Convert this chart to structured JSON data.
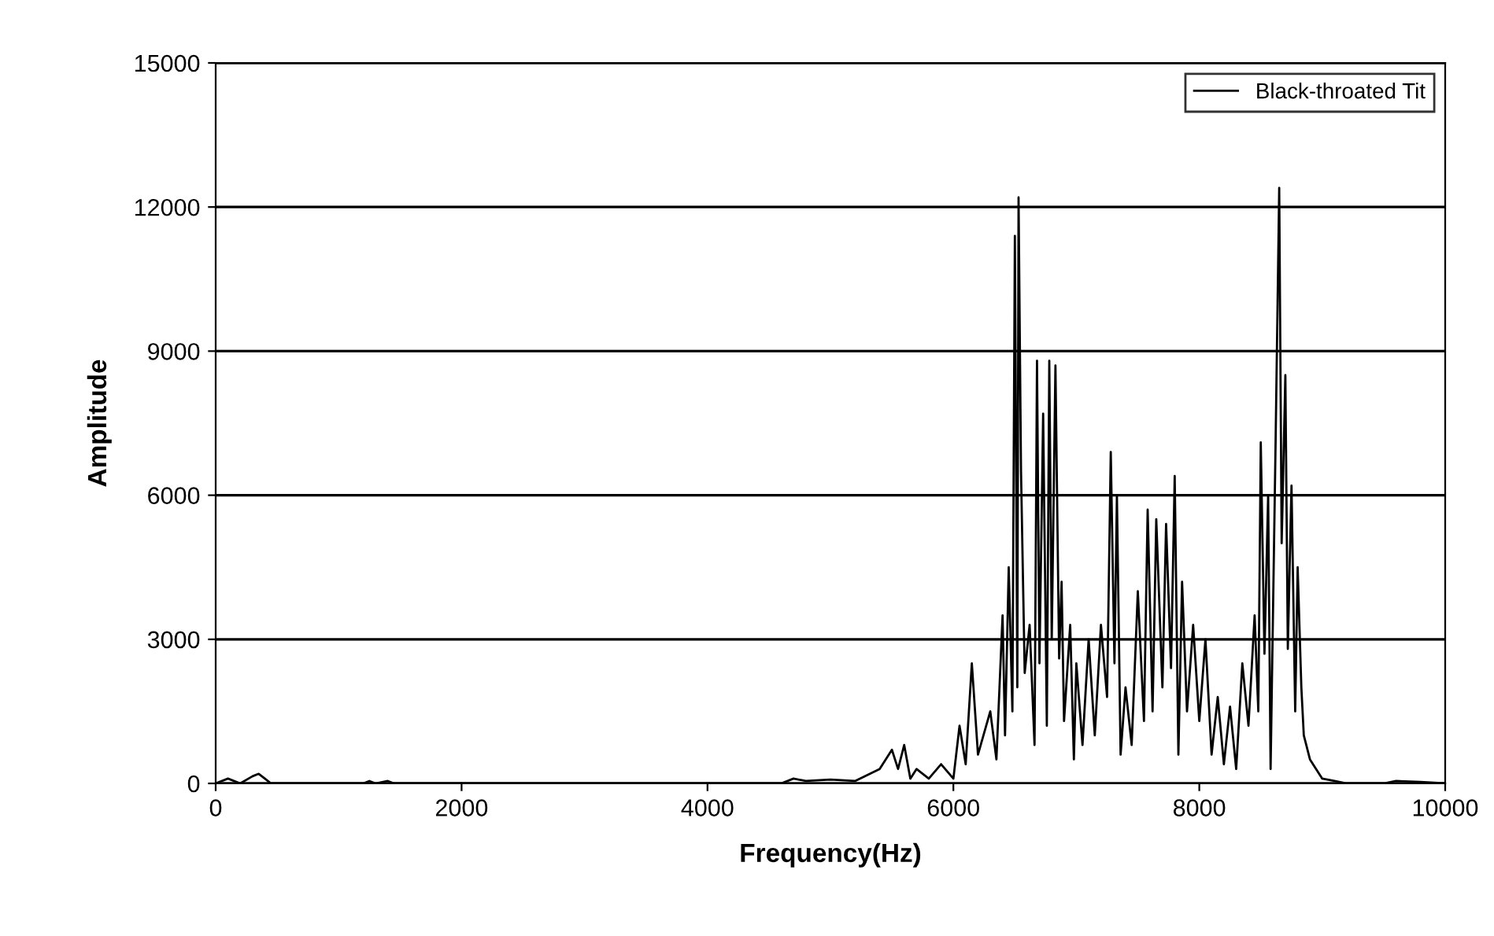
{
  "chart_data": {
    "type": "line",
    "xlabel": "Frequency(Hz)",
    "ylabel": "Amplitude",
    "xlim": [
      0,
      10000
    ],
    "ylim": [
      0,
      15000
    ],
    "xticks": [
      0,
      2000,
      4000,
      6000,
      8000,
      10000
    ],
    "yticks": [
      0,
      3000,
      6000,
      9000,
      12000,
      15000
    ],
    "grid": "y",
    "legend": "top right",
    "marker": "none",
    "line_style": "solid",
    "series": [
      {
        "name": "Black-throated Tit",
        "color": "#000000",
        "x": [
          0,
          100,
          200,
          300,
          350,
          400,
          450,
          1200,
          1250,
          1300,
          1400,
          1450,
          4600,
          4700,
          4800,
          5000,
          5200,
          5400,
          5500,
          5550,
          5600,
          5650,
          5700,
          5800,
          5900,
          6000,
          6050,
          6100,
          6150,
          6200,
          6300,
          6350,
          6400,
          6420,
          6450,
          6480,
          6500,
          6520,
          6530,
          6550,
          6580,
          6620,
          6660,
          6680,
          6700,
          6730,
          6760,
          6780,
          6800,
          6830,
          6860,
          6880,
          6900,
          6950,
          6980,
          7000,
          7050,
          7100,
          7150,
          7200,
          7250,
          7280,
          7310,
          7330,
          7360,
          7400,
          7450,
          7500,
          7550,
          7580,
          7620,
          7650,
          7700,
          7730,
          7770,
          7800,
          7830,
          7860,
          7900,
          7950,
          8000,
          8050,
          8100,
          8150,
          8200,
          8250,
          8300,
          8350,
          8400,
          8450,
          8480,
          8500,
          8530,
          8560,
          8580,
          8620,
          8650,
          8670,
          8700,
          8720,
          8750,
          8780,
          8800,
          8830,
          8850,
          8900,
          8950,
          9000,
          9100,
          9200,
          9500,
          9600,
          9800,
          10000
        ],
        "values": [
          0,
          100,
          0,
          150,
          200,
          100,
          0,
          0,
          50,
          0,
          50,
          0,
          0,
          100,
          50,
          80,
          50,
          300,
          700,
          300,
          800,
          100,
          300,
          100,
          400,
          100,
          1200,
          400,
          2500,
          600,
          1500,
          500,
          3500,
          1000,
          4500,
          1500,
          11400,
          2000,
          12200,
          6500,
          2300,
          3300,
          800,
          8800,
          2500,
          7700,
          1200,
          8800,
          3000,
          8700,
          2600,
          4200,
          1300,
          3300,
          500,
          2500,
          800,
          3000,
          1000,
          3300,
          1800,
          6900,
          2500,
          6000,
          600,
          2000,
          800,
          4000,
          1300,
          5700,
          1500,
          5500,
          2000,
          5400,
          2400,
          6400,
          600,
          4200,
          1500,
          3300,
          1300,
          3000,
          600,
          1800,
          400,
          1600,
          300,
          2500,
          1200,
          3500,
          1500,
          7100,
          2700,
          6000,
          300,
          7000,
          12400,
          5000,
          8500,
          2800,
          6200,
          1500,
          4500,
          2000,
          1000,
          500,
          300,
          100,
          50,
          0,
          0,
          50,
          30,
          0
        ]
      }
    ]
  }
}
